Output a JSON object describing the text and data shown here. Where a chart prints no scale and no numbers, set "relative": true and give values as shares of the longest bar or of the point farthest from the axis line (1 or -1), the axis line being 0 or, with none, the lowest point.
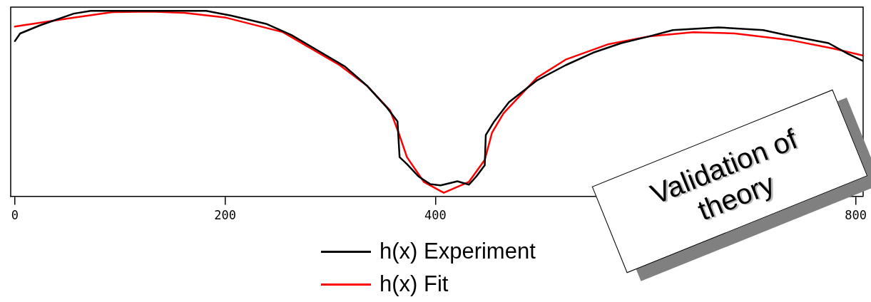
{
  "chart_data": {
    "type": "line",
    "relative": true,
    "xlim": [
      -4,
      807
    ],
    "xticks": [
      0,
      200,
      400,
      800
    ],
    "tick_labels": "x",
    "grid": false,
    "legend": "bottom",
    "marker": "none",
    "line_style": "solid",
    "annotations": [
      "Validation of theory"
    ],
    "series": [
      {
        "name": "h(x) Experiment",
        "color": "#000000",
        "x": [
          0,
          5,
          24,
          56,
          72,
          182,
          206,
          239,
          263,
          290,
          314,
          335,
          354,
          364,
          366,
          373,
          384,
          395,
          405,
          421,
          432,
          439,
          447,
          448,
          456,
          470,
          497,
          524,
          550,
          577,
          604,
          626,
          669,
          712,
          733,
          774,
          793,
          807
        ],
        "values": [
          0.837,
          0.878,
          0.922,
          0.985,
          1.0,
          1.0,
          0.974,
          0.93,
          0.87,
          0.78,
          0.7,
          0.596,
          0.478,
          0.404,
          0.211,
          0.174,
          0.107,
          0.066,
          0.059,
          0.081,
          0.063,
          0.107,
          0.167,
          0.33,
          0.404,
          0.507,
          0.626,
          0.707,
          0.774,
          0.826,
          0.863,
          0.896,
          0.911,
          0.896,
          0.87,
          0.826,
          0.767,
          0.73
        ]
      },
      {
        "name": "h(x) Fit",
        "color": "#ff0000",
        "x": [
          0,
          56,
          93,
          130,
          161,
          201,
          255,
          309,
          335,
          357,
          365,
          373,
          389,
          408,
          432,
          447,
          454,
          465,
          497,
          524,
          564,
          604,
          645,
          685,
          739,
          779,
          807
        ],
        "values": [
          0.915,
          0.963,
          0.993,
          0.996,
          0.989,
          0.963,
          0.885,
          0.707,
          0.596,
          0.463,
          0.344,
          0.211,
          0.078,
          0.019,
          0.078,
          0.196,
          0.344,
          0.448,
          0.641,
          0.737,
          0.819,
          0.863,
          0.885,
          0.878,
          0.841,
          0.796,
          0.759
        ]
      }
    ]
  }
}
